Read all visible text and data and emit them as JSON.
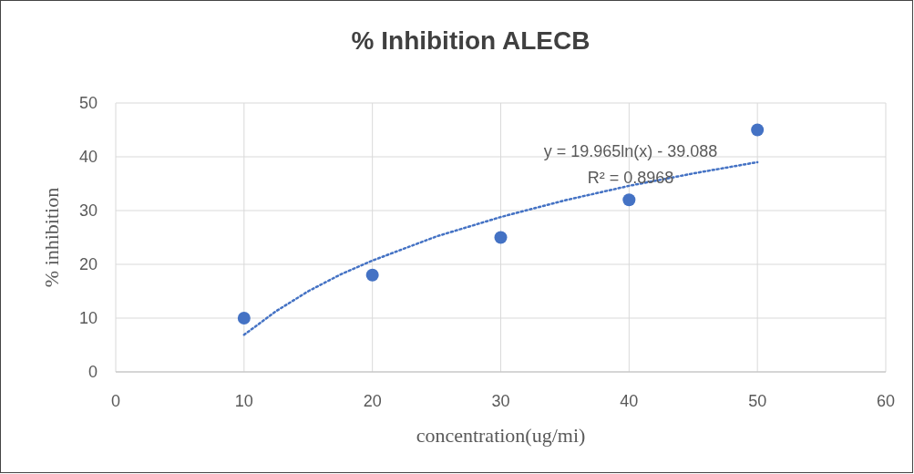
{
  "chart_data": {
    "type": "scatter",
    "title": "% Inhibition ALECB",
    "xlabel": "concentration(ug/mi)",
    "ylabel": "% inhibition",
    "xlim": [
      0,
      60
    ],
    "xticks": [
      0,
      10,
      20,
      30,
      40,
      50,
      60
    ],
    "ylim": [
      0,
      50
    ],
    "yticks": [
      0,
      10,
      20,
      30,
      40,
      50
    ],
    "grid": true,
    "marker": "circle",
    "series": [
      {
        "color": "#4472c4",
        "x": [
          10,
          20,
          30,
          40,
          50
        ],
        "values": [
          10,
          18,
          25,
          32,
          45
        ]
      },
      {
        "type": "line",
        "color": "#4472c4",
        "line_style": "dotted",
        "marker": "none",
        "x": [
          10,
          12.5,
          15,
          17.5,
          20,
          25,
          30,
          35,
          40,
          45,
          50
        ],
        "values": [
          6.9,
          11.3,
          15.0,
          18.1,
          20.7,
          25.2,
          28.8,
          31.9,
          34.6,
          36.9,
          39.0
        ]
      }
    ],
    "annotations": [
      "y = 19.965ln(x) - 39.088",
      "R² = 0.8968"
    ]
  }
}
